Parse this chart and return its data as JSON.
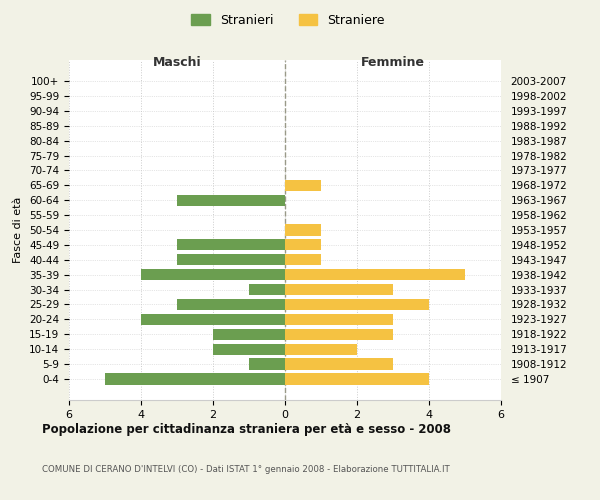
{
  "age_groups": [
    "100+",
    "95-99",
    "90-94",
    "85-89",
    "80-84",
    "75-79",
    "70-74",
    "65-69",
    "60-64",
    "55-59",
    "50-54",
    "45-49",
    "40-44",
    "35-39",
    "30-34",
    "25-29",
    "20-24",
    "15-19",
    "10-14",
    "5-9",
    "0-4"
  ],
  "birth_years": [
    "≤ 1907",
    "1908-1912",
    "1913-1917",
    "1918-1922",
    "1923-1927",
    "1928-1932",
    "1933-1937",
    "1938-1942",
    "1943-1947",
    "1948-1952",
    "1953-1957",
    "1958-1962",
    "1963-1967",
    "1968-1972",
    "1973-1977",
    "1978-1982",
    "1983-1987",
    "1988-1992",
    "1993-1997",
    "1998-2002",
    "2003-2007"
  ],
  "maschi": [
    0,
    0,
    0,
    0,
    0,
    0,
    0,
    0,
    3,
    0,
    0,
    3,
    3,
    4,
    1,
    3,
    4,
    2,
    2,
    1,
    5
  ],
  "femmine": [
    0,
    0,
    0,
    0,
    0,
    0,
    0,
    1,
    0,
    0,
    1,
    1,
    1,
    5,
    3,
    4,
    3,
    3,
    2,
    3,
    4
  ],
  "male_color": "#6b9e50",
  "female_color": "#f5c242",
  "bg_color": "#f2f2e6",
  "plot_bg_color": "#ffffff",
  "title": "Popolazione per cittadinanza straniera per età e sesso - 2008",
  "subtitle": "COMUNE DI CERANO D'INTELVI (CO) - Dati ISTAT 1° gennaio 2008 - Elaborazione TUTTITALIA.IT",
  "xlabel_left": "Maschi",
  "xlabel_right": "Femmine",
  "ylabel_left": "Fasce di età",
  "legend_male": "Stranieri",
  "legend_female": "Straniere",
  "xlim": 6,
  "grid_color": "#cccccc"
}
